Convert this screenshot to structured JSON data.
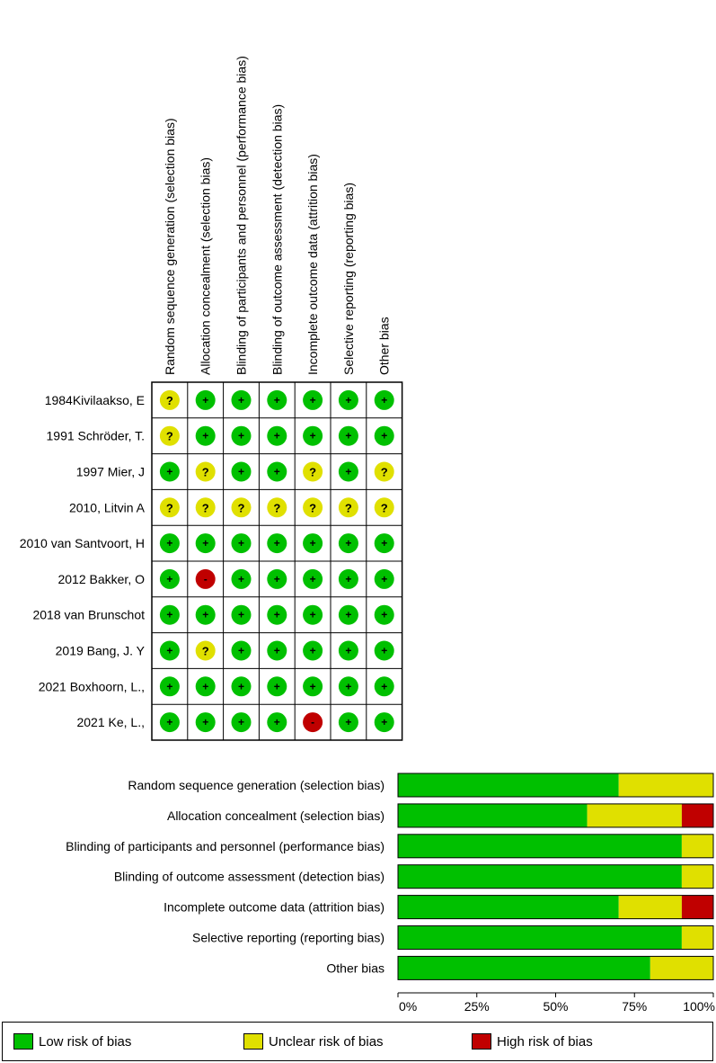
{
  "chart_data": [
    {
      "type": "table",
      "columns": [
        "Random sequence generation (selection bias)",
        "Allocation concealment (selection bias)",
        "Blinding of participants and personnel (performance bias)",
        "Blinding of outcome assessment (detection bias)",
        "Incomplete outcome data (attrition bias)",
        "Selective reporting (reporting bias)",
        "Other bias"
      ],
      "rows": [
        {
          "study": "1984Kivilaakso, E",
          "ratings": [
            "?",
            "+",
            "+",
            "+",
            "+",
            "+",
            "+"
          ]
        },
        {
          "study": "1991 Schröder, T.",
          "ratings": [
            "?",
            "+",
            "+",
            "+",
            "+",
            "+",
            "+"
          ]
        },
        {
          "study": "1997  Mier, J",
          "ratings": [
            "+",
            "?",
            "+",
            "+",
            "?",
            "+",
            "?"
          ]
        },
        {
          "study": "2010, Litvin A",
          "ratings": [
            "?",
            "?",
            "?",
            "?",
            "?",
            "?",
            "?"
          ]
        },
        {
          "study": "2010  van Santvoort, H",
          "ratings": [
            "+",
            "+",
            "+",
            "+",
            "+",
            "+",
            "+"
          ]
        },
        {
          "study": "2012 Bakker, O",
          "ratings": [
            "+",
            "-",
            "+",
            "+",
            "+",
            "+",
            "+"
          ]
        },
        {
          "study": "2018 van Brunschot",
          "ratings": [
            "+",
            "+",
            "+",
            "+",
            "+",
            "+",
            "+"
          ]
        },
        {
          "study": "2019 Bang, J. Y",
          "ratings": [
            "+",
            "?",
            "+",
            "+",
            "+",
            "+",
            "+"
          ]
        },
        {
          "study": "2021 Boxhoorn, L.,",
          "ratings": [
            "+",
            "+",
            "+",
            "+",
            "+",
            "+",
            "+"
          ]
        },
        {
          "study": "2021 Ke, L.,",
          "ratings": [
            "+",
            "+",
            "+",
            "+",
            "-",
            "+",
            "+"
          ]
        }
      ],
      "symbol_colors": {
        "+": "#00c000",
        "?": "#e0e000",
        "-": "#c00000"
      }
    },
    {
      "type": "bar",
      "orientation": "horizontal",
      "stacked": true,
      "categories": [
        "Random sequence generation (selection bias)",
        "Allocation concealment (selection bias)",
        "Blinding of participants and personnel (performance bias)",
        "Blinding of outcome assessment (detection bias)",
        "Incomplete outcome data (attrition bias)",
        "Selective reporting (reporting bias)",
        "Other bias"
      ],
      "series": [
        {
          "name": "Low risk of bias",
          "color": "#00c000",
          "values": [
            70,
            60,
            90,
            90,
            70,
            90,
            80
          ]
        },
        {
          "name": "Unclear risk of bias",
          "color": "#e0e000",
          "values": [
            30,
            30,
            10,
            10,
            20,
            10,
            20
          ]
        },
        {
          "name": "High risk of bias",
          "color": "#c00000",
          "values": [
            0,
            10,
            0,
            0,
            10,
            0,
            0
          ]
        }
      ],
      "xlim": [
        0,
        100
      ],
      "xticks": [
        "0%",
        "25%",
        "50%",
        "75%",
        "100%"
      ],
      "legend_position": "bottom"
    }
  ]
}
